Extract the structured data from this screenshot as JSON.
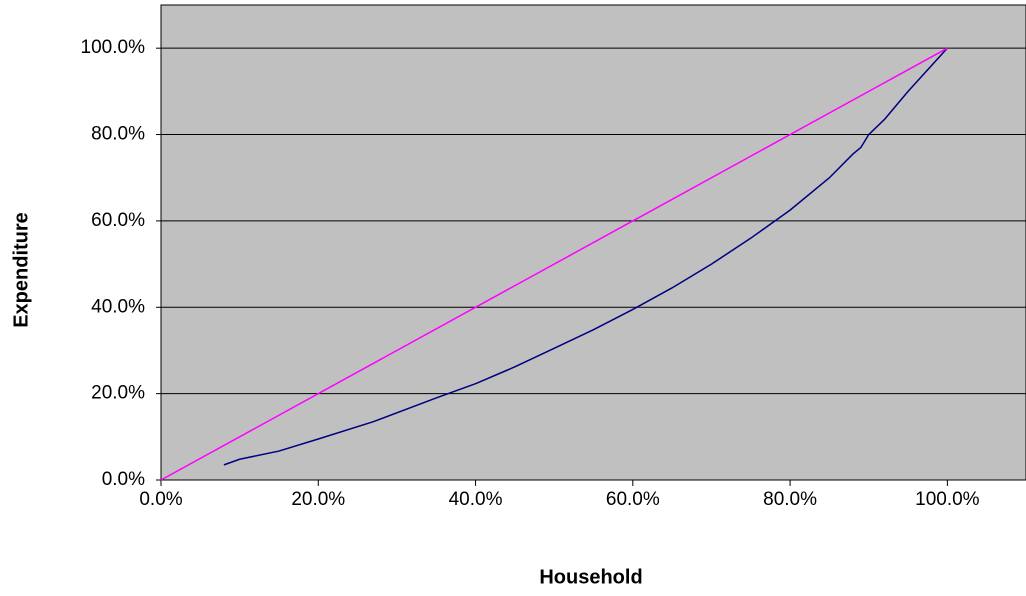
{
  "chart_data": {
    "type": "line",
    "x_label": "Household",
    "y_label": "Expenditure",
    "xlim": [
      0,
      110
    ],
    "ylim": [
      0,
      110
    ],
    "xticks": [
      {
        "value": 0,
        "label": "0.0%"
      },
      {
        "value": 20,
        "label": "20.0%"
      },
      {
        "value": 40,
        "label": "40.0%"
      },
      {
        "value": 60,
        "label": "60.0%"
      },
      {
        "value": 80,
        "label": "80.0%"
      },
      {
        "value": 100,
        "label": "100.0%"
      }
    ],
    "yticks": [
      {
        "value": 0,
        "label": "0.0%"
      },
      {
        "value": 20,
        "label": "20.0%"
      },
      {
        "value": 40,
        "label": "40.0%"
      },
      {
        "value": 60,
        "label": "60.0%"
      },
      {
        "value": 80,
        "label": "80.0%"
      },
      {
        "value": 100,
        "label": "100.0%"
      }
    ],
    "grid": true,
    "background": "#c0c0c0",
    "series": [
      {
        "color": "#000080",
        "x": [
          8,
          10,
          15,
          20,
          27,
          35,
          40,
          45,
          50,
          55,
          60,
          65,
          70,
          75,
          80,
          85,
          88,
          89,
          90,
          92,
          95,
          100
        ],
        "values": [
          3.5,
          4.8,
          6.7,
          9.5,
          13.5,
          19,
          22.3,
          26.2,
          30.5,
          34.8,
          39.5,
          44.5,
          50,
          56,
          62.5,
          70,
          75.5,
          77,
          80,
          83.5,
          90,
          100
        ]
      },
      {
        "color": "#ff00ff",
        "x": [
          0,
          100
        ],
        "values": [
          0,
          100
        ]
      }
    ]
  }
}
